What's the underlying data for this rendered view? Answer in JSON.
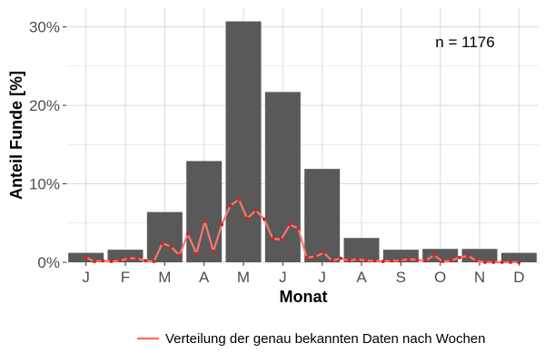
{
  "chart_data": {
    "type": "bar",
    "categories": [
      "J",
      "F",
      "M",
      "A",
      "M",
      "J",
      "J",
      "A",
      "S",
      "O",
      "N",
      "D"
    ],
    "values": [
      1.2,
      1.6,
      6.4,
      12.9,
      30.7,
      21.7,
      11.9,
      3.1,
      1.6,
      1.7,
      1.7,
      1.2
    ],
    "xlabel": "Monat",
    "ylabel": "Anteil Funde [%]",
    "ylim": [
      0,
      32.5
    ],
    "y_ticks": [
      0,
      10,
      20,
      30
    ],
    "y_tick_labels": [
      "0%",
      "10%",
      "20%",
      "30%"
    ],
    "annotation": "n = 1176",
    "line_series": {
      "name": "Verteilung der genau bekannten Daten nach Wochen",
      "x_week": [
        1,
        2,
        3,
        4,
        5,
        6,
        7,
        8,
        9,
        10,
        11,
        12,
        13,
        14,
        15,
        16,
        17,
        18,
        19,
        20,
        21,
        22,
        23,
        24,
        25,
        26,
        27,
        28,
        29,
        30,
        31,
        32,
        33,
        34,
        35,
        36,
        37,
        38,
        39,
        40,
        41,
        42,
        43,
        44,
        45,
        46,
        47,
        48,
        49,
        50,
        51,
        52
      ],
      "values": [
        0.6,
        0.1,
        0.2,
        0.1,
        0.2,
        0.5,
        0.5,
        0.2,
        0.1,
        2.4,
        2.0,
        0.9,
        3.6,
        1.1,
        5.2,
        1.4,
        4.8,
        7.2,
        8.0,
        5.6,
        6.6,
        5.5,
        3.0,
        2.9,
        4.8,
        4.3,
        0.6,
        0.7,
        1.2,
        0.2,
        0.5,
        0.2,
        0.4,
        0.2,
        0.2,
        0.1,
        0.2,
        0.2,
        0.4,
        0.3,
        0.2,
        0.9,
        0.1,
        0.2,
        0.6,
        0.8,
        0.2,
        0.0,
        0.0,
        0.0,
        0.0,
        0.0
      ]
    },
    "grid": true,
    "legend_position": "bottom",
    "colors": {
      "bars": "#595959",
      "line": "#f8766d",
      "points": "#e41a1c",
      "grid": "#d9d9d9",
      "background": "#ffffff"
    }
  }
}
